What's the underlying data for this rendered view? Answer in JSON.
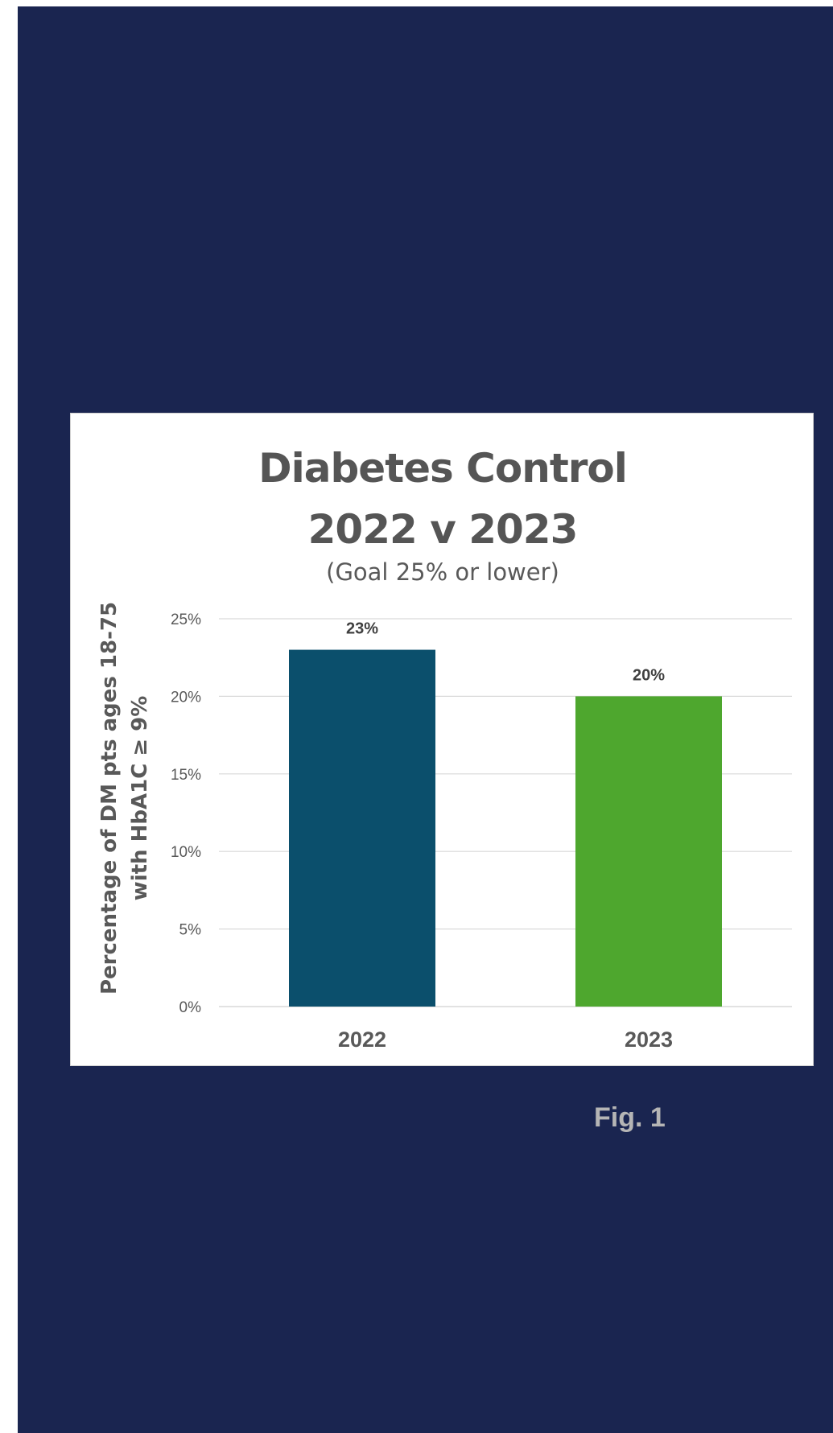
{
  "caption": "Fig. 1",
  "chart_data": {
    "type": "bar",
    "title_lines": [
      "Diabetes Control",
      "2022 v 2023"
    ],
    "subtitle": "(Goal 25% or lower)",
    "ylabel_lines": [
      "Percentage of DM pts ages 18-75",
      "with HbA1C ≥ 9%"
    ],
    "xlabel": "",
    "categories": [
      "2022",
      "2023"
    ],
    "values": [
      23,
      20
    ],
    "data_labels": [
      "23%",
      "20%"
    ],
    "bar_colors": [
      "#0b4f6c",
      "#4ea72e"
    ],
    "ylim": [
      0,
      25
    ],
    "yticks": [
      0,
      5,
      10,
      15,
      20,
      25
    ],
    "ytick_labels": [
      "0%",
      "5%",
      "10%",
      "15%",
      "20%",
      "25%"
    ],
    "grid": true,
    "legend": "none"
  }
}
